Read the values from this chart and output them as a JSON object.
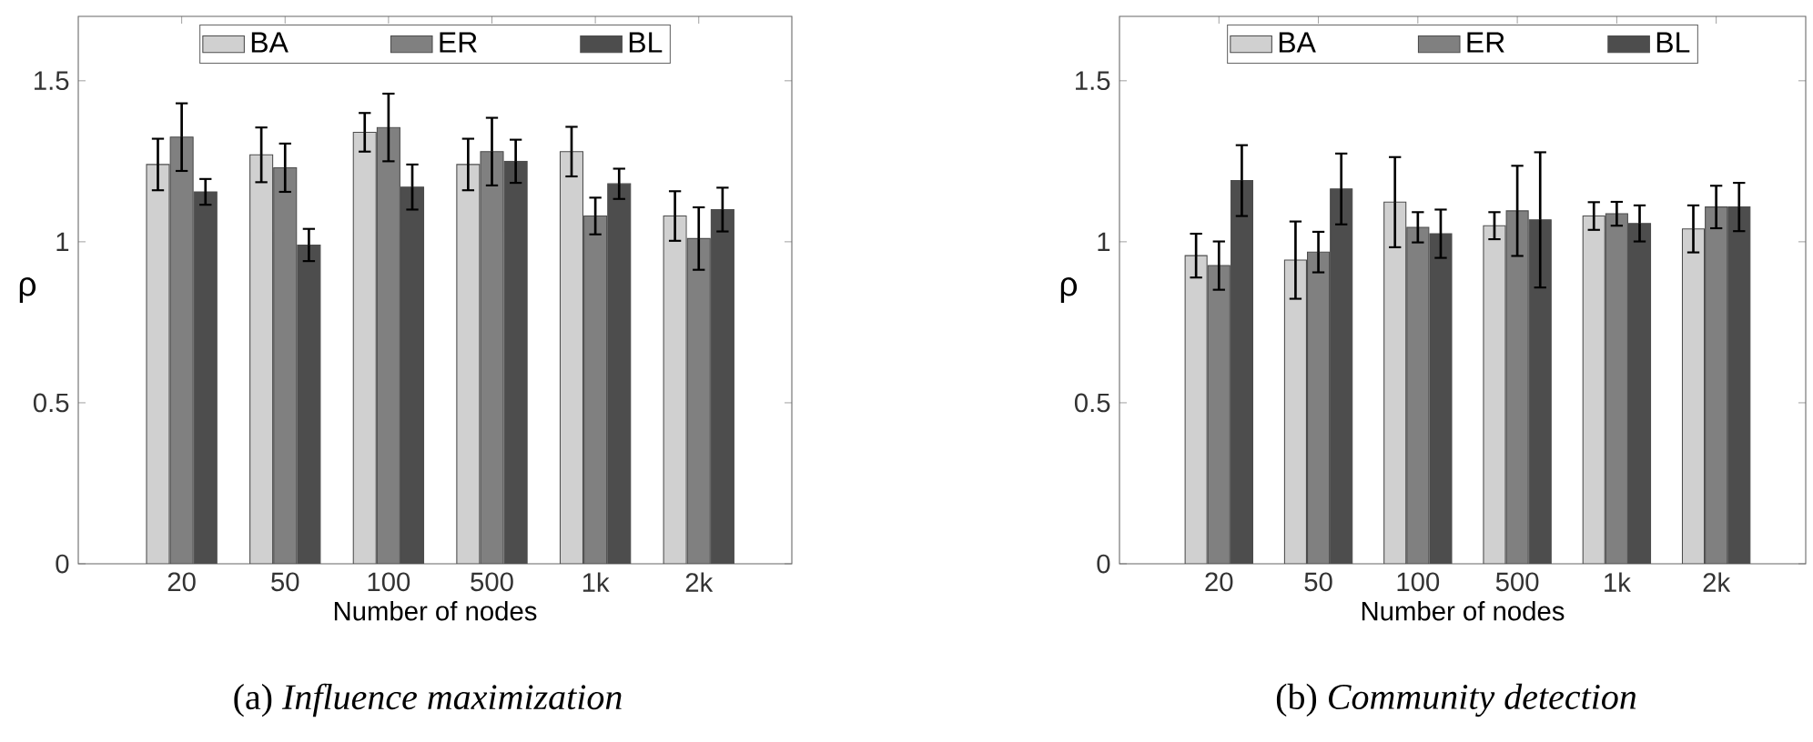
{
  "chart_data": [
    {
      "type": "bar",
      "xlabel": "Number of nodes",
      "ylabel": "ρ",
      "categories": [
        "20",
        "50",
        "100",
        "500",
        "1k",
        "2k"
      ],
      "series": [
        {
          "name": "BA",
          "color": "#d0d0d0",
          "values": [
            1.24,
            1.27,
            1.34,
            1.24,
            1.28,
            1.08
          ],
          "errors": [
            0.08,
            0.085,
            0.06,
            0.08,
            0.077,
            0.077
          ]
        },
        {
          "name": "ER",
          "color": "#808080",
          "values": [
            1.325,
            1.23,
            1.355,
            1.28,
            1.08,
            1.01
          ],
          "errors": [
            0.105,
            0.075,
            0.105,
            0.105,
            0.057,
            0.097
          ]
        },
        {
          "name": "BL",
          "color": "#4d4d4d",
          "values": [
            1.155,
            0.99,
            1.17,
            1.25,
            1.18,
            1.1
          ],
          "errors": [
            0.04,
            0.05,
            0.07,
            0.067,
            0.047,
            0.068
          ]
        }
      ],
      "ylim": [
        0,
        1.7
      ],
      "yticks": [
        0,
        0.5,
        1,
        1.5
      ],
      "legend": "top",
      "grid": false,
      "annotations": [
        "(a) *Influence maximization*"
      ]
    },
    {
      "type": "bar",
      "xlabel": "Number of nodes",
      "ylabel": "ρ",
      "categories": [
        "20",
        "50",
        "100",
        "500",
        "1k",
        "2k"
      ],
      "series": [
        {
          "name": "BA",
          "color": "#d0d0d0",
          "values": [
            0.957,
            0.943,
            1.123,
            1.05,
            1.08,
            1.04
          ],
          "errors": [
            0.068,
            0.12,
            0.14,
            0.042,
            0.043,
            0.073
          ]
        },
        {
          "name": "ER",
          "color": "#808080",
          "values": [
            0.926,
            0.968,
            1.045,
            1.096,
            1.087,
            1.108
          ],
          "errors": [
            0.075,
            0.063,
            0.047,
            0.14,
            0.037,
            0.066
          ]
        },
        {
          "name": "BL",
          "color": "#4d4d4d",
          "values": [
            1.19,
            1.164,
            1.025,
            1.068,
            1.057,
            1.108
          ],
          "errors": [
            0.11,
            0.11,
            0.075,
            0.21,
            0.056,
            0.075
          ]
        }
      ],
      "ylim": [
        0,
        1.7
      ],
      "yticks": [
        0,
        0.5,
        1,
        1.5
      ],
      "legend": "top",
      "grid": false,
      "annotations": [
        "(b) *Community detection*"
      ]
    }
  ]
}
